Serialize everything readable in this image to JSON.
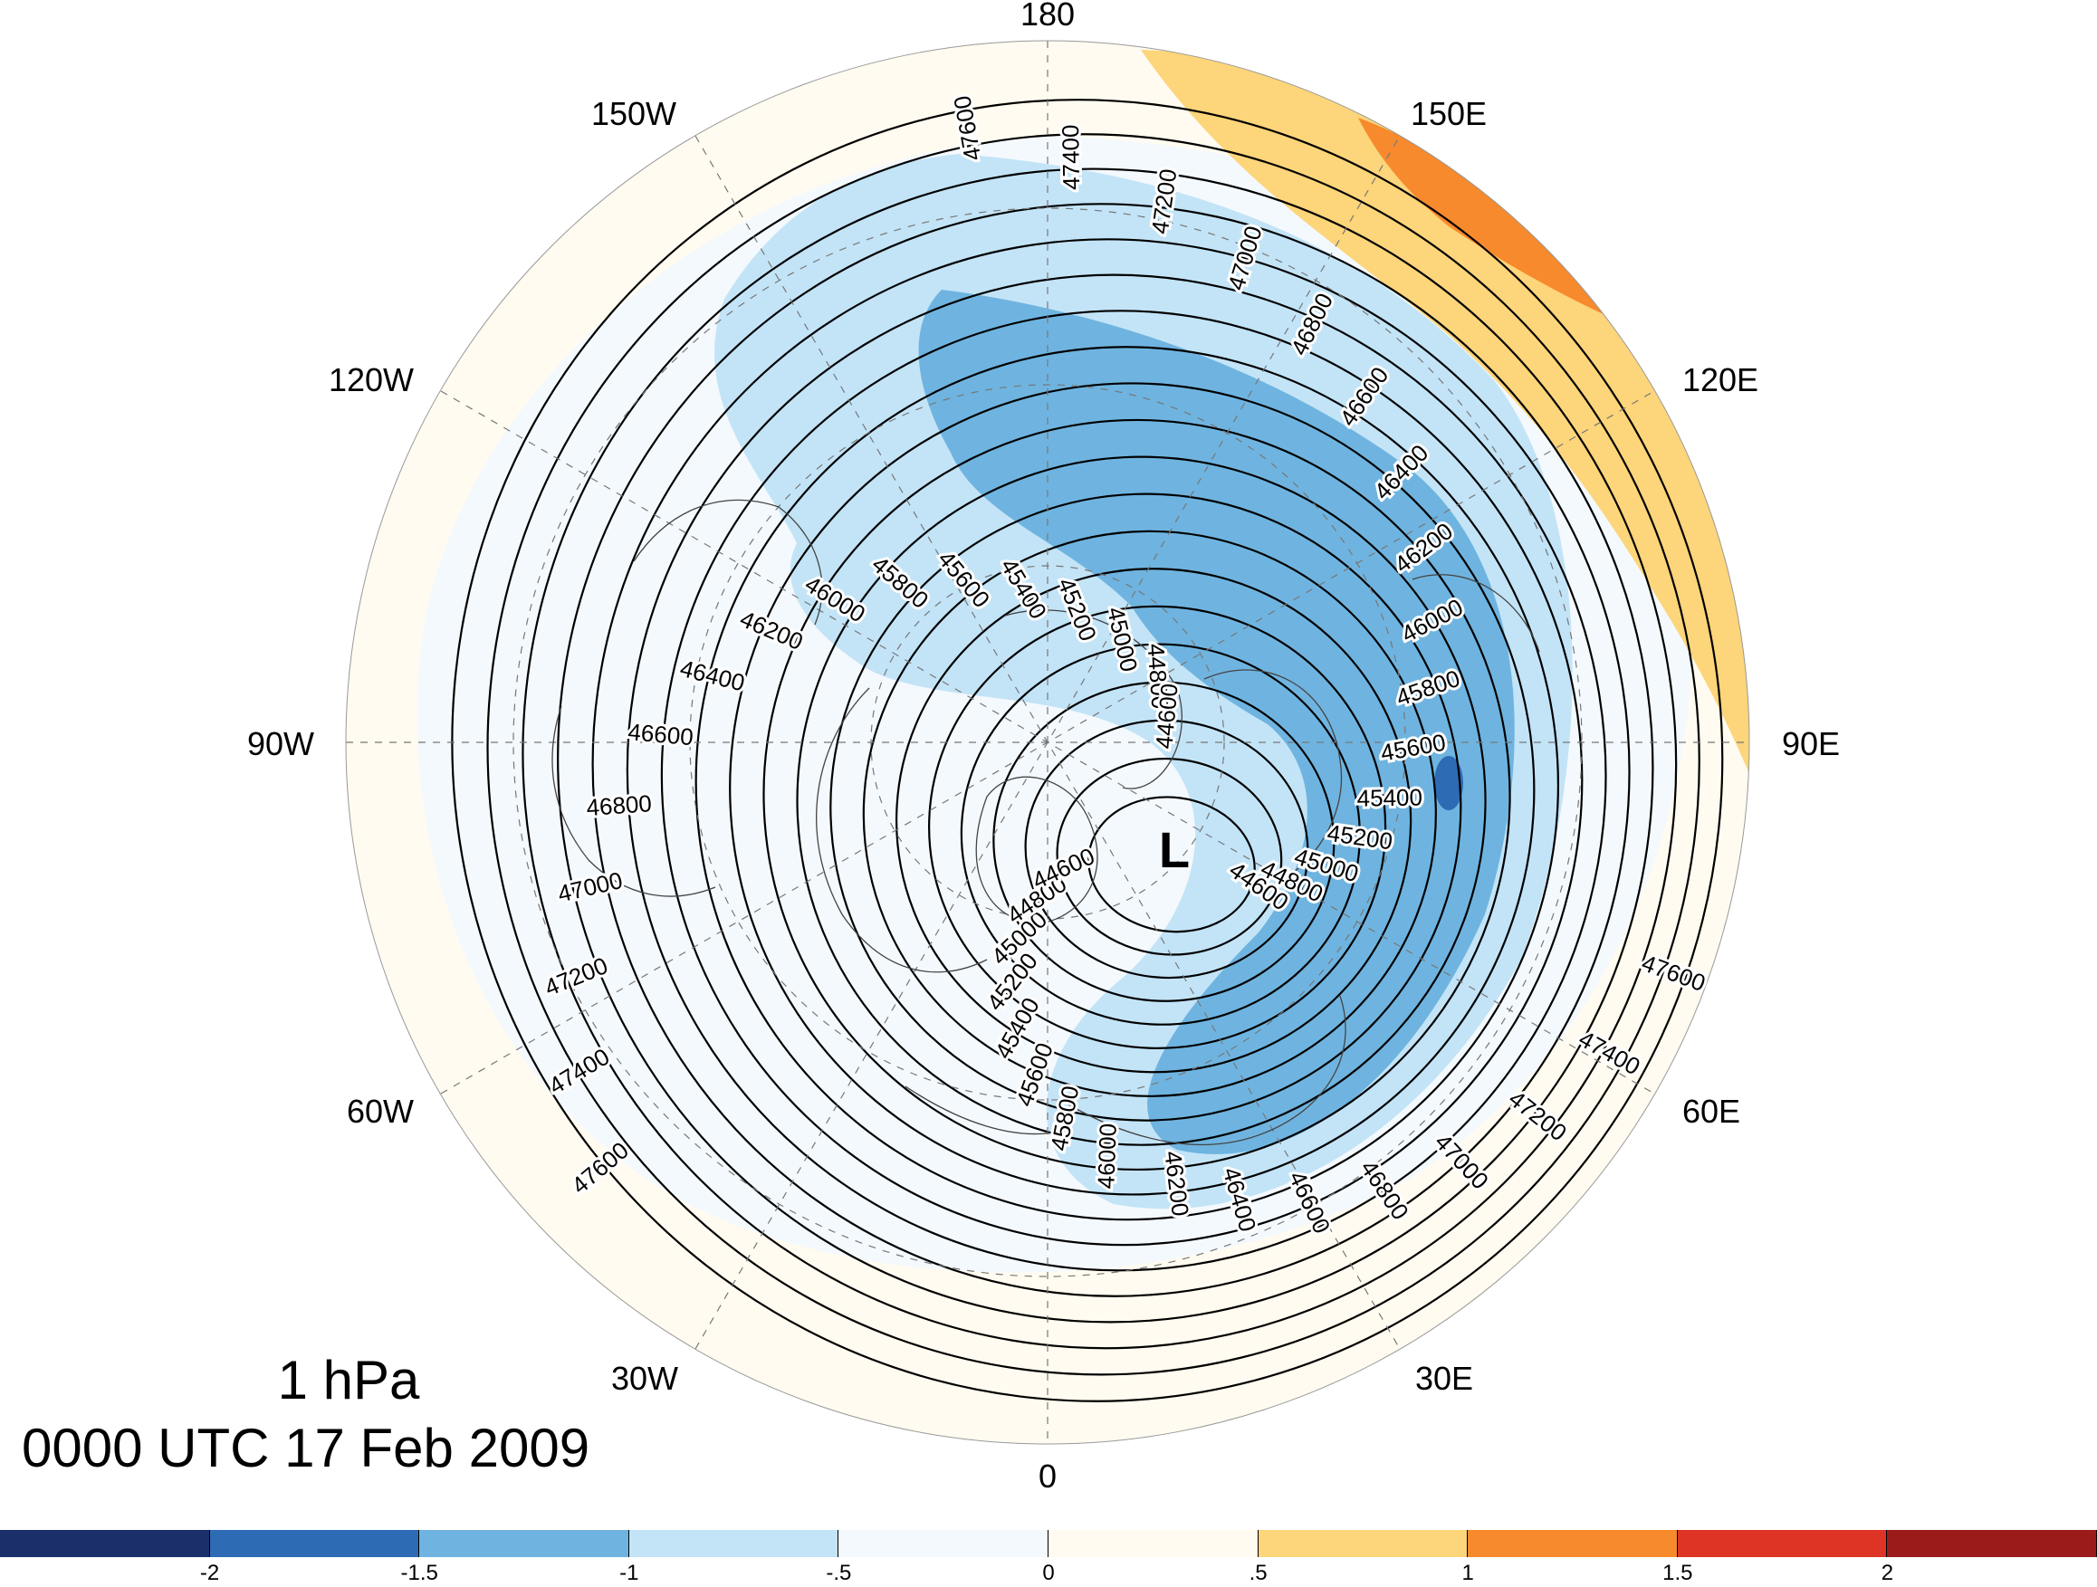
{
  "title": {
    "level": "1 hPa",
    "time": "0000 UTC 17 Feb 2009"
  },
  "map": {
    "projection": "north-polar-stereographic",
    "center_label": "L",
    "longitude_labels": [
      "180",
      "150E",
      "120E",
      "90E",
      "60E",
      "30E",
      "0",
      "30W",
      "60W",
      "90W",
      "120W",
      "150W"
    ]
  },
  "contours": {
    "variable": "geopotential height",
    "labels": [
      "47600",
      "47400",
      "47200",
      "47000",
      "46800",
      "46600",
      "46400",
      "46200",
      "46000",
      "45800",
      "45600",
      "45400",
      "45200",
      "45000",
      "44800",
      "44600"
    ]
  },
  "colorbar": {
    "colors": [
      "#1b2f6b",
      "#2d6bb5",
      "#6fb4e0",
      "#c3e4f7",
      "#f4f9fd",
      "#fffbf0",
      "#fdd57a",
      "#f78a2d",
      "#dd3425",
      "#9b1b1b"
    ],
    "tick_labels": [
      "-2",
      "-1.5",
      "-1",
      "-.5",
      "0",
      ".5",
      "1",
      "1.5",
      "2"
    ]
  },
  "anomaly_fill": {
    "colors": {
      "pos_light": "#fdd57a",
      "pos_mid": "#f78a2d",
      "neg_faint": "#f4f9fd",
      "neg_light": "#c3e4f7",
      "neg_mid": "#6fb4e0",
      "neg_strong": "#2d6bb5"
    }
  }
}
